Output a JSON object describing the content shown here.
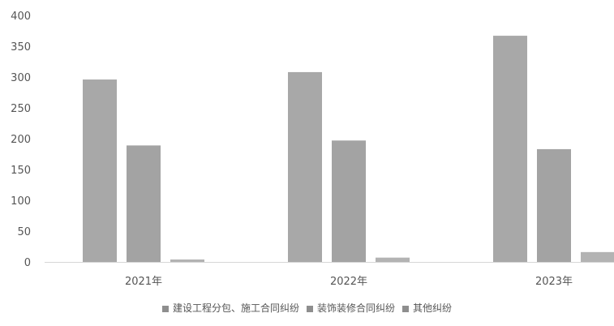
{
  "chart_data": {
    "type": "bar",
    "categories": [
      "2021年",
      "2022年",
      "2023年"
    ],
    "series": [
      {
        "name": "建设工程分包、施工合同纠纷",
        "values": [
          296,
          308,
          367
        ]
      },
      {
        "name": "装饰装修合同纠纷",
        "values": [
          189,
          197,
          183
        ]
      },
      {
        "name": "其他纠纷",
        "values": [
          4,
          7,
          16
        ]
      }
    ],
    "ylim": [
      0,
      400
    ],
    "yticks": [
      0,
      50,
      100,
      150,
      200,
      250,
      300,
      350,
      400
    ],
    "grid": false,
    "legend_position": "bottom",
    "colors": [
      "#a8a8a8",
      "#a3a3a3",
      "#b3b3b3"
    ],
    "axis_color": "#7a7a7a",
    "label_color": "#555555"
  }
}
